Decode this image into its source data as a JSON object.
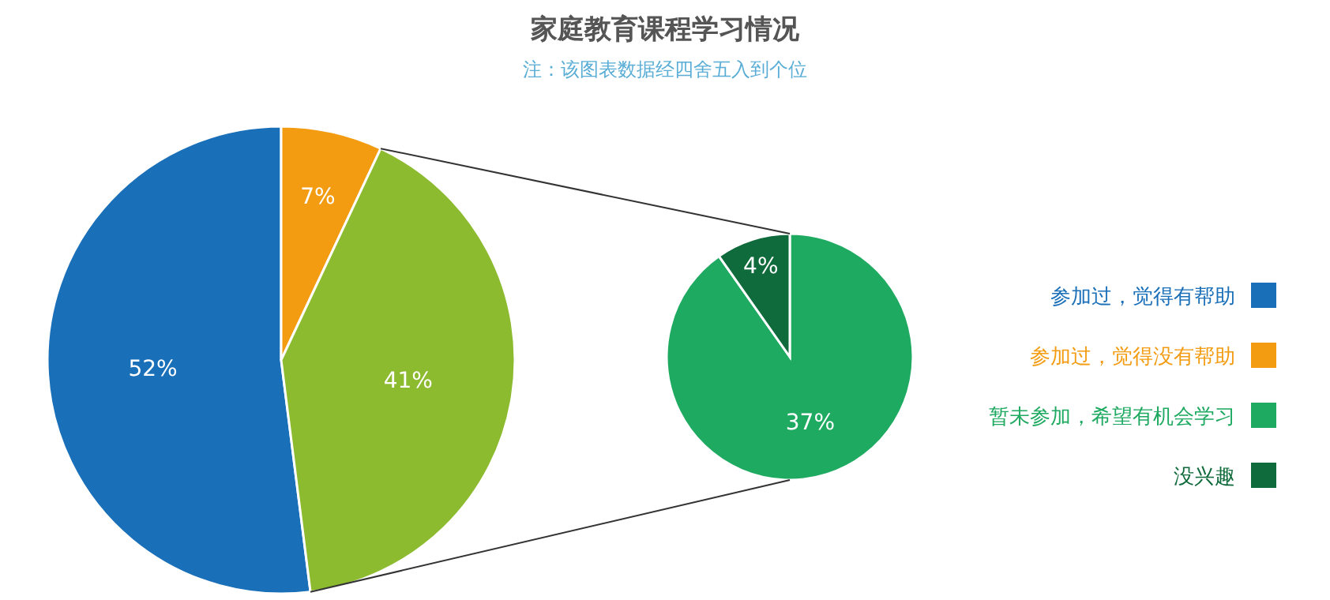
{
  "chart_data": [
    {
      "type": "pie",
      "title": "家庭教育课程学习情况",
      "subtitle": "注：该图表数据经四舍五入到个位",
      "categories": [
        "参加过，觉得有帮助",
        "参加过，觉得没有帮助",
        null
      ],
      "values": [
        52,
        7,
        41
      ],
      "value_labels": [
        "52%",
        "7%",
        "41%"
      ],
      "colors": [
        "#1a6fb9",
        "#f39c12",
        "#8dbb2f"
      ],
      "data_labels": true,
      "legend": "right"
    },
    {
      "type": "pie",
      "categories": [
        "暂未参加，希望有机会学习",
        "没兴趣"
      ],
      "values": [
        37,
        4
      ],
      "value_labels": [
        "37%",
        "4%"
      ],
      "colors": [
        "#1faa61",
        "#0f6b3b"
      ],
      "data_labels": true,
      "legend": "right"
    }
  ]
}
